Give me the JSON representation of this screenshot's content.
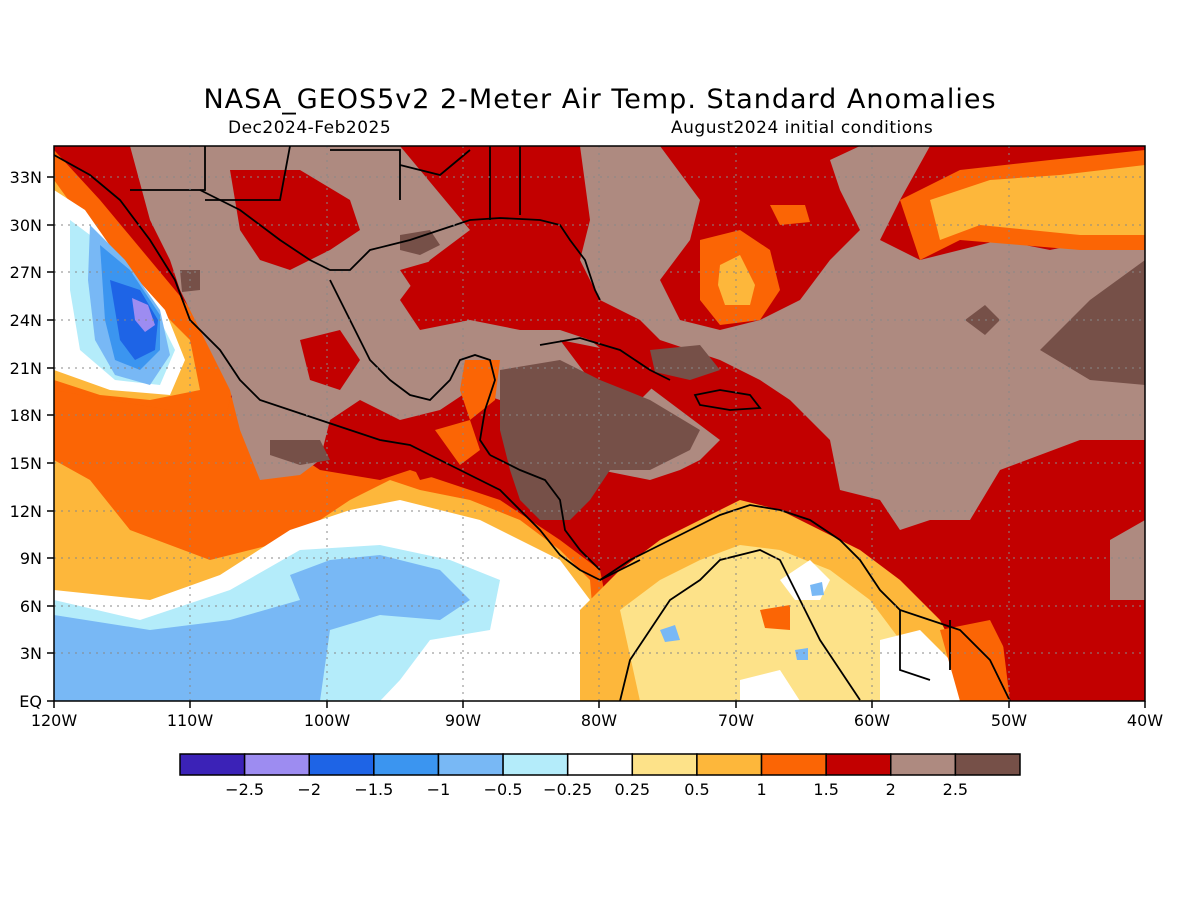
{
  "title": "NASA_GEOS5v2 2-Meter Air Temp. Standard Anomalies",
  "period": "Dec2024-Feb2025",
  "init": "August2024 initial conditions",
  "lat_labels": [
    "33N",
    "30N",
    "27N",
    "24N",
    "21N",
    "18N",
    "15N",
    "12N",
    "9N",
    "6N",
    "3N",
    "EQ"
  ],
  "lon_labels": [
    "120W",
    "110W",
    "100W",
    "90W",
    "80W",
    "70W",
    "60W",
    "50W",
    "40W"
  ],
  "colorbar": {
    "labels": [
      "-2.5",
      "-2",
      "-1.5",
      "-1",
      "-0.5",
      "-0.25",
      "0.25",
      "0.5",
      "1",
      "1.5",
      "2",
      "2.5"
    ],
    "colors": [
      "#3b22b7",
      "#9d8cf1",
      "#1e64e6",
      "#3b95f0",
      "#78b8f5",
      "#b4ecfa",
      "#ffffff",
      "#fde289",
      "#fdb73b",
      "#fb6505",
      "#c20000",
      "#ae8a80",
      "#765048"
    ]
  },
  "palette": {
    "dark_brown": "#765048",
    "brown": "#ae8a80",
    "dark_red": "#c20000",
    "orange": "#fb6505",
    "light_orange": "#fdb73b",
    "yellow": "#fde289",
    "white": "#ffffff",
    "pale_cyan": "#b4ecfa",
    "light_blue": "#78b8f5",
    "blue": "#3b95f0",
    "deep_blue": "#1e64e6",
    "purple": "#9d8cf1"
  }
}
